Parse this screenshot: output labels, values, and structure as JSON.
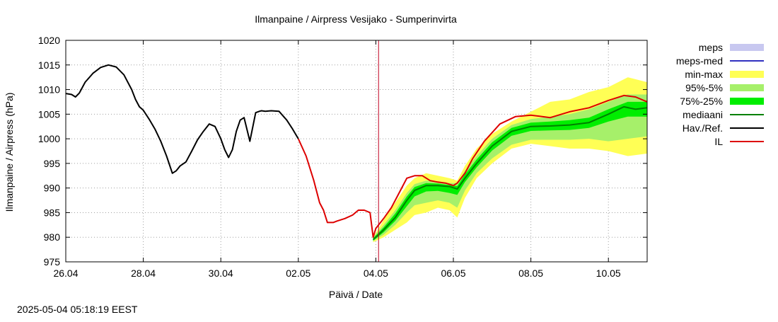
{
  "chart_data": {
    "type": "line",
    "title": "Ilmanpaine / Airpress Vesijako - Sumperinvirta",
    "xlabel": "Päivä / Date",
    "ylabel": "Ilmanpaine / Airpress (hPa)",
    "ylim": [
      975,
      1020
    ],
    "xlim": [
      0,
      15
    ],
    "x_unit": "days since 26.04",
    "x_ticks": [
      {
        "x": 0,
        "label": "26.04"
      },
      {
        "x": 2,
        "label": "28.04"
      },
      {
        "x": 4,
        "label": "30.04"
      },
      {
        "x": 6,
        "label": "02.05"
      },
      {
        "x": 8,
        "label": "04.05"
      },
      {
        "x": 10,
        "label": "06.05"
      },
      {
        "x": 12,
        "label": "08.05"
      },
      {
        "x": 14,
        "label": "10.05"
      }
    ],
    "y_ticks": [
      975,
      980,
      985,
      990,
      995,
      1000,
      1005,
      1010,
      1015,
      1020
    ],
    "grid": true,
    "legend_position": "right",
    "now_marker_x": 8.07,
    "timestamp": "2025-05-04 05:18:19 EEST",
    "legend": [
      {
        "label": "meps",
        "kind": "band",
        "color": "#c8c8f0"
      },
      {
        "label": "meps-med",
        "kind": "line",
        "color": "#3030c0"
      },
      {
        "label": "min-max",
        "kind": "band",
        "color": "#ffff55"
      },
      {
        "label": "95%-5%",
        "kind": "band",
        "color": "#a6f06a"
      },
      {
        "label": "75%-25%",
        "kind": "band",
        "color": "#00ee00"
      },
      {
        "label": "mediaani",
        "kind": "line",
        "color": "#008000"
      },
      {
        "label": "Hav./Ref.",
        "kind": "line",
        "color": "#000000"
      },
      {
        "label": "IL",
        "kind": "line",
        "color": "#dd0000"
      }
    ],
    "series": [
      {
        "name": "Hav./Ref.",
        "color": "#000000",
        "x": [
          0,
          0.15,
          0.25,
          0.35,
          0.5,
          0.7,
          0.9,
          1.1,
          1.3,
          1.5,
          1.7,
          1.8,
          1.9,
          2.0,
          2.15,
          2.3,
          2.45,
          2.6,
          2.75,
          2.85,
          2.95,
          3.1,
          3.25,
          3.4,
          3.55,
          3.7,
          3.85,
          4.0,
          4.1,
          4.2,
          4.3,
          4.4,
          4.5,
          4.6,
          4.75,
          4.9,
          5.0,
          5.05,
          5.15,
          5.3,
          5.5,
          5.7,
          5.85,
          6.0
        ],
        "y": [
          1009.2,
          1009.0,
          1008.5,
          1009.3,
          1011.5,
          1013.3,
          1014.5,
          1015.0,
          1014.6,
          1013.0,
          1010.0,
          1008.0,
          1006.5,
          1005.8,
          1004.0,
          1002.0,
          999.5,
          996.5,
          993.0,
          993.5,
          994.5,
          995.3,
          997.5,
          999.8,
          1001.5,
          1003.0,
          1002.5,
          1000.0,
          997.8,
          996.2,
          997.8,
          1001.5,
          1003.8,
          1004.3,
          999.5,
          1005.3,
          1005.6,
          1005.7,
          1005.6,
          1005.7,
          1005.6,
          1003.8,
          1002.0,
          1000.0
        ]
      },
      {
        "name": "IL",
        "color": "#dd0000",
        "x": [
          6.0,
          6.2,
          6.4,
          6.55,
          6.65,
          6.75,
          6.9,
          7.0,
          7.2,
          7.4,
          7.55,
          7.7,
          7.85,
          7.93,
          8.0,
          8.2,
          8.4,
          8.6,
          8.8,
          9.0,
          9.2,
          9.4,
          9.6,
          9.8,
          10.0,
          10.1,
          10.3,
          10.5,
          10.8,
          11.2,
          11.6,
          12.0,
          12.5,
          13.0,
          13.5,
          14.0,
          14.4,
          14.7,
          15.0
        ],
        "y": [
          1000.0,
          996.5,
          991.5,
          987.0,
          985.5,
          983.0,
          983.0,
          983.3,
          983.8,
          984.5,
          985.5,
          985.5,
          985.0,
          980.0,
          981.8,
          983.8,
          986.0,
          989.0,
          992.0,
          992.5,
          992.5,
          991.5,
          991.2,
          991.0,
          990.5,
          991.0,
          993.0,
          996.0,
          999.5,
          1003.0,
          1004.5,
          1004.8,
          1004.3,
          1005.5,
          1006.3,
          1007.8,
          1008.8,
          1008.5,
          1007.5
        ]
      },
      {
        "name": "mediaani",
        "color": "#008000",
        "x": [
          7.93,
          8.2,
          8.5,
          8.8,
          9.0,
          9.3,
          9.6,
          9.9,
          10.1,
          10.3,
          10.6,
          11.0,
          11.5,
          12.0,
          12.5,
          13.0,
          13.5,
          14.0,
          14.4,
          14.7,
          15.0
        ],
        "y": [
          979.5,
          981.5,
          984.0,
          987.5,
          989.5,
          990.5,
          990.5,
          990.3,
          989.8,
          992.0,
          995.0,
          998.5,
          1001.5,
          1002.5,
          1002.6,
          1002.8,
          1003.3,
          1005.0,
          1006.5,
          1006.0,
          1006.3
        ]
      }
    ],
    "bands": [
      {
        "name": "min-max",
        "color": "#ffff55",
        "x": [
          7.93,
          8.2,
          8.5,
          8.8,
          9.0,
          9.3,
          9.6,
          9.9,
          10.1,
          10.3,
          10.6,
          11.0,
          11.5,
          12.0,
          12.5,
          13.0,
          13.5,
          14.0,
          14.5,
          15.0
        ],
        "upper": [
          980.0,
          983.5,
          987.0,
          990.5,
          992.0,
          993.0,
          992.5,
          992.0,
          991.5,
          994.5,
          998.0,
          1001.0,
          1003.5,
          1005.5,
          1007.5,
          1008.0,
          1009.5,
          1010.5,
          1012.5,
          1011.5
        ],
        "lower": [
          979.0,
          980.0,
          981.5,
          983.0,
          984.5,
          985.0,
          986.0,
          985.5,
          984.0,
          988.0,
          992.0,
          995.0,
          998.0,
          999.0,
          998.5,
          998.0,
          998.0,
          997.5,
          996.5,
          997.0
        ]
      },
      {
        "name": "95%-5%",
        "color": "#a6f06a",
        "x": [
          7.93,
          8.2,
          8.5,
          8.8,
          9.0,
          9.3,
          9.6,
          9.9,
          10.1,
          10.3,
          10.6,
          11.0,
          11.5,
          12.0,
          12.5,
          13.0,
          13.5,
          14.0,
          14.5,
          15.0
        ],
        "upper": [
          980.0,
          982.5,
          985.5,
          989.0,
          990.8,
          991.5,
          991.3,
          991.0,
          991.0,
          993.5,
          996.5,
          1000.0,
          1002.8,
          1004.0,
          1004.5,
          1005.0,
          1006.0,
          1007.5,
          1009.0,
          1009.0
        ],
        "lower": [
          979.2,
          980.5,
          982.5,
          985.0,
          986.5,
          987.0,
          987.5,
          987.0,
          986.0,
          989.5,
          993.0,
          996.0,
          998.8,
          999.8,
          999.8,
          999.8,
          1000.0,
          999.5,
          1000.0,
          1000.5
        ]
      },
      {
        "name": "75%-25%",
        "color": "#00ee00",
        "x": [
          7.93,
          8.2,
          8.5,
          8.8,
          9.0,
          9.3,
          9.6,
          9.9,
          10.1,
          10.3,
          10.6,
          11.0,
          11.5,
          12.0,
          12.5,
          13.0,
          13.5,
          14.0,
          14.5,
          15.0
        ],
        "upper": [
          979.8,
          982.0,
          984.8,
          988.3,
          990.2,
          991.0,
          990.9,
          990.6,
          990.4,
          992.8,
          995.8,
          999.3,
          1002.2,
          1003.3,
          1003.5,
          1003.8,
          1004.3,
          1006.0,
          1007.5,
          1007.5
        ],
        "lower": [
          979.3,
          981.0,
          983.3,
          986.3,
          988.3,
          989.3,
          989.4,
          989.0,
          988.6,
          991.2,
          994.2,
          997.6,
          1000.6,
          1001.6,
          1001.7,
          1001.8,
          1002.2,
          1003.5,
          1004.5,
          1004.5
        ]
      }
    ]
  }
}
